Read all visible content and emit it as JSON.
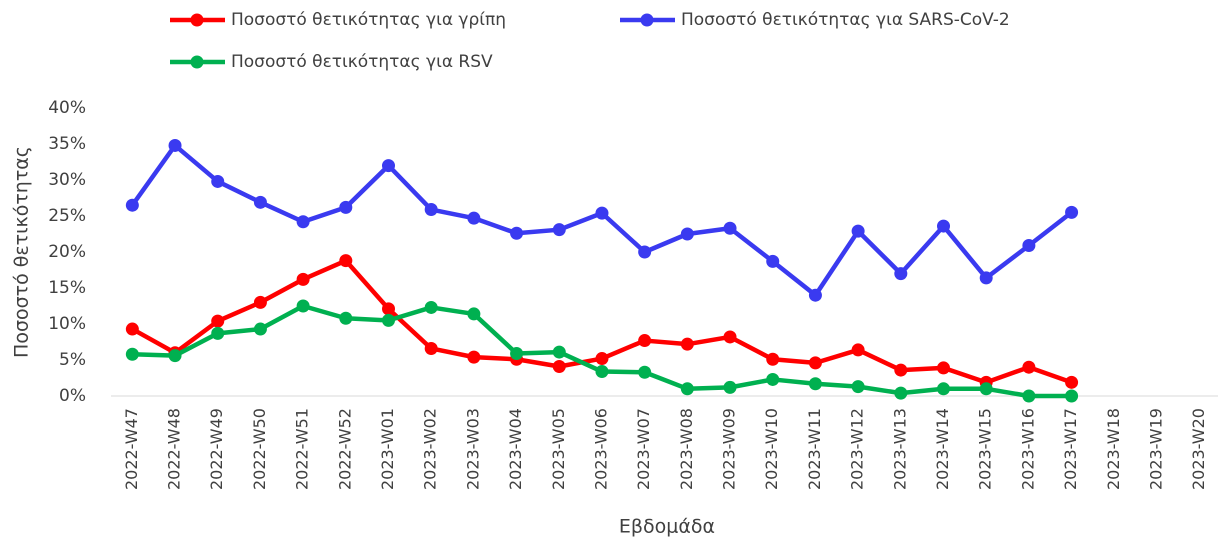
{
  "chart_data": {
    "type": "line",
    "y_label": "Ποσοστό θετικότητας",
    "x_label": "Εβδομάδα",
    "categories": [
      "2022-W47",
      "2022-W48",
      "2022-W49",
      "2022-W50",
      "2022-W51",
      "2022-W52",
      "2023-W01",
      "2023-W02",
      "2023-W03",
      "2023-W04",
      "2023-W05",
      "2023-W06",
      "2023-W07",
      "2023-W08",
      "2023-W09",
      "2023-W10",
      "2023-W11",
      "2023-W12",
      "2023-W13",
      "2023-W14",
      "2023-W15",
      "2023-W16",
      "2023-W17",
      "2023-W18",
      "2023-W19",
      "2023-W20"
    ],
    "series": [
      {
        "name": "Ποσοστό θετικότητας για γρίπη",
        "color": "#ff0000",
        "values": [
          9.3,
          6.0,
          10.4,
          13.0,
          16.2,
          18.8,
          12.1,
          6.6,
          5.4,
          5.1,
          4.1,
          5.2,
          7.7,
          7.2,
          8.2,
          5.1,
          4.6,
          6.4,
          3.6,
          3.9,
          1.9,
          4.0,
          1.9,
          null,
          null,
          null
        ]
      },
      {
        "name": "Ποσοστό θετικότητας για SARS-CoV-2",
        "color": "#3a3af0",
        "values": [
          26.5,
          34.8,
          29.8,
          26.9,
          24.2,
          26.2,
          32.0,
          25.9,
          24.7,
          22.6,
          23.1,
          25.4,
          20.0,
          22.5,
          23.3,
          18.7,
          14.0,
          22.9,
          17.0,
          23.6,
          16.4,
          20.9,
          25.5,
          null,
          null,
          null
        ]
      },
      {
        "name": "Ποσοστό θετικότητας για RSV",
        "color": "#00b050",
        "values": [
          5.8,
          5.6,
          8.7,
          9.3,
          12.5,
          10.8,
          10.5,
          12.3,
          11.4,
          5.9,
          6.1,
          3.4,
          3.3,
          1.0,
          1.2,
          2.3,
          1.7,
          1.3,
          0.4,
          1.0,
          1.0,
          0.0,
          0.0,
          null,
          null,
          null
        ]
      }
    ],
    "ylim": [
      0,
      40
    ],
    "yticks": [
      {
        "value": 0,
        "label": "0%"
      },
      {
        "value": 5,
        "label": "5%"
      },
      {
        "value": 10,
        "label": "10%"
      },
      {
        "value": 15,
        "label": "15%"
      },
      {
        "value": 20,
        "label": "20%"
      },
      {
        "value": 25,
        "label": "25%"
      },
      {
        "value": 30,
        "label": "30%"
      },
      {
        "value": 35,
        "label": "35%"
      },
      {
        "value": 40,
        "label": "40%"
      }
    ]
  }
}
